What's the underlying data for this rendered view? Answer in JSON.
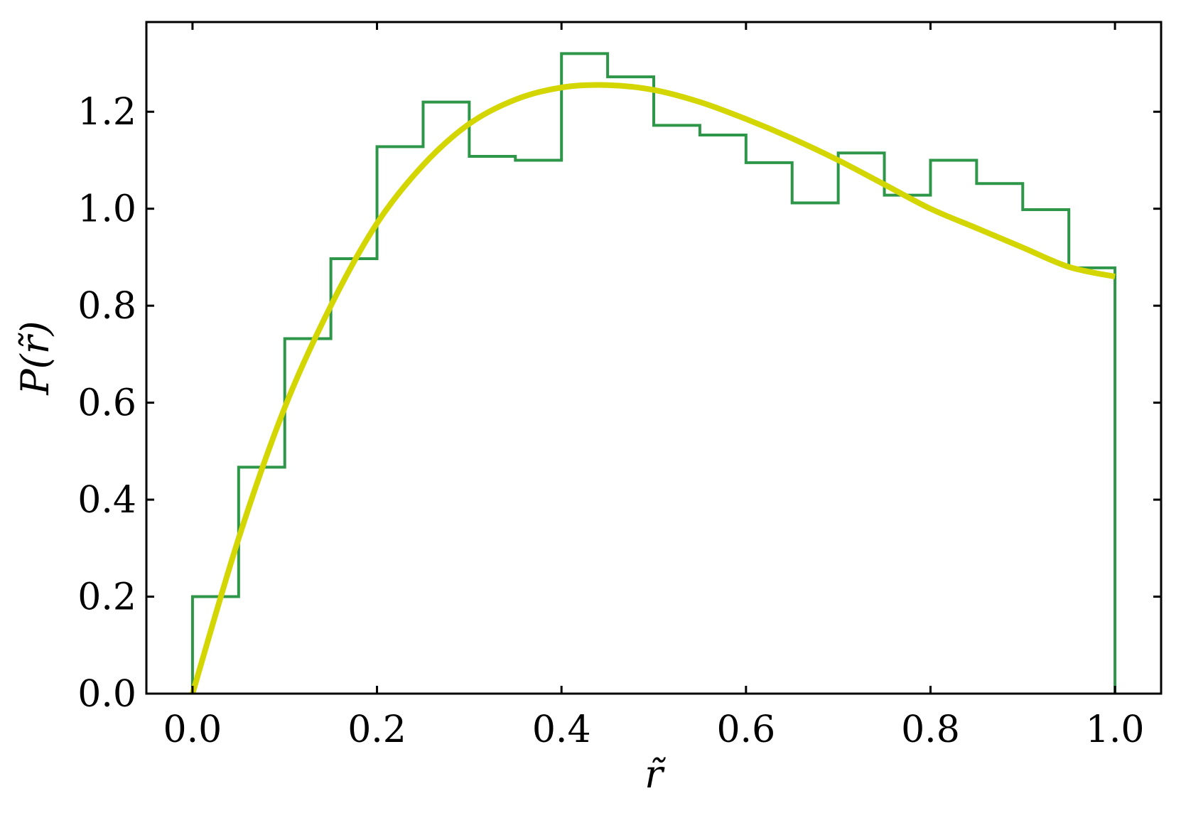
{
  "chart_data": {
    "type": "line",
    "title": "",
    "xlabel": "r̃",
    "ylabel": "P(r̃)",
    "xlim": [
      -0.05,
      1.05
    ],
    "ylim": [
      0.0,
      1.385
    ],
    "xticks": [
      0.0,
      0.2,
      0.4,
      0.6,
      0.8,
      1.0
    ],
    "xtick_labels": [
      "0.0",
      "0.2",
      "0.4",
      "0.6",
      "0.8",
      "1.0"
    ],
    "yticks": [
      0.0,
      0.2,
      0.4,
      0.6,
      0.8,
      1.0,
      1.2
    ],
    "ytick_labels": [
      "0.0",
      "0.2",
      "0.4",
      "0.6",
      "0.8",
      "1.0",
      "1.2"
    ],
    "grid": false,
    "legend": "none",
    "colors": {
      "histogram": "#2e9648",
      "curve": "#d3d600",
      "axes": "#000000"
    },
    "series": [
      {
        "kind": "step-histogram",
        "bin_edges": [
          0.0,
          0.05,
          0.1,
          0.15,
          0.2,
          0.25,
          0.3,
          0.35,
          0.4,
          0.45,
          0.5,
          0.55,
          0.6,
          0.65,
          0.7,
          0.75,
          0.8,
          0.85,
          0.9,
          0.95,
          1.0
        ],
        "values": [
          0.2,
          0.467,
          0.732,
          0.897,
          1.128,
          1.22,
          1.108,
          1.1,
          1.32,
          1.272,
          1.172,
          1.152,
          1.095,
          1.012,
          1.115,
          1.028,
          1.1,
          1.052,
          0.998,
          0.878
        ]
      },
      {
        "kind": "curve",
        "x": [
          0.0,
          0.05,
          0.1,
          0.15,
          0.2,
          0.25,
          0.3,
          0.35,
          0.4,
          0.45,
          0.5,
          0.55,
          0.6,
          0.65,
          0.7,
          0.75,
          0.8,
          0.85,
          0.9,
          0.95,
          1.0
        ],
        "y": [
          0.0,
          0.32,
          0.59,
          0.8,
          0.97,
          1.09,
          1.175,
          1.225,
          1.25,
          1.255,
          1.245,
          1.22,
          1.185,
          1.145,
          1.1,
          1.05,
          1.0,
          0.96,
          0.92,
          0.88,
          0.86
        ]
      }
    ]
  }
}
